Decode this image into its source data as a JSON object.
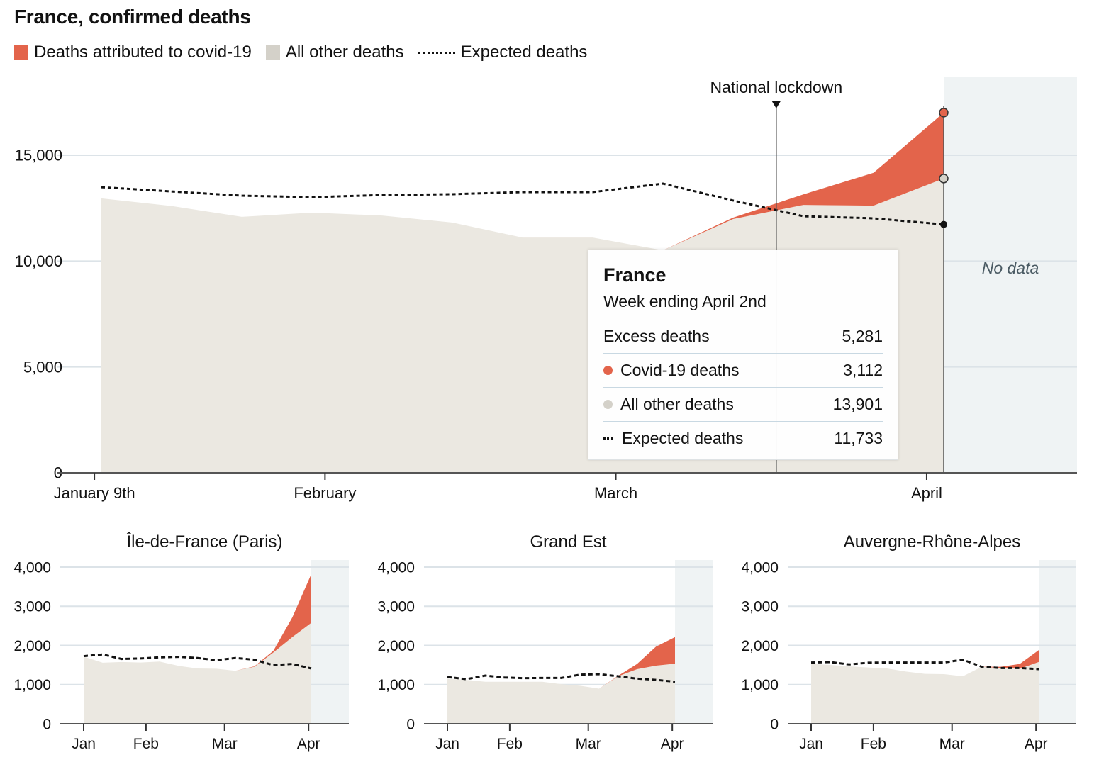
{
  "title": "France, confirmed deaths",
  "legend": [
    {
      "label": "Deaths attributed to covid-19",
      "color": "#E3644B"
    },
    {
      "label": "All other deaths",
      "color": "#D4D1C9"
    },
    {
      "label": "Expected deaths",
      "style": "dotted"
    }
  ],
  "colors": {
    "covid": "#E3644B",
    "other": "#EBE8E1",
    "grid": "#DCE3E8",
    "nodata": "#EFF3F4",
    "axis": "#555555"
  },
  "chart_data": [
    {
      "type": "area",
      "name": "France",
      "weeks": [
        "2020-01-09",
        "2020-01-16",
        "2020-01-23",
        "2020-01-30",
        "2020-02-06",
        "2020-02-13",
        "2020-02-20",
        "2020-02-27",
        "2020-03-05",
        "2020-03-12",
        "2020-03-19",
        "2020-03-26",
        "2020-04-02"
      ],
      "other": [
        12960,
        12600,
        12090,
        12290,
        12150,
        11820,
        11110,
        11110,
        10510,
        11985,
        12650,
        12620,
        13901
      ],
      "covid": [
        0,
        0,
        0,
        0,
        0,
        0,
        0,
        0,
        0,
        70,
        500,
        1550,
        3112
      ],
      "expected": [
        13490,
        13290,
        13090,
        13020,
        13120,
        13160,
        13260,
        13260,
        13660,
        12860,
        12120,
        12020,
        11733
      ],
      "ylim": [
        0,
        18000
      ],
      "yticks": [
        {
          "v": 0,
          "label": "0"
        },
        {
          "v": 5000,
          "label": "5,000"
        },
        {
          "v": 10000,
          "label": "10,000"
        },
        {
          "v": 15000,
          "label": "15,000"
        }
      ],
      "xticks": [
        {
          "date": "2020-01-09",
          "label": "January 9th"
        },
        {
          "date": "2020-02-01",
          "label": "February"
        },
        {
          "date": "2020-03-01",
          "label": "March"
        },
        {
          "date": "2020-04-01",
          "label": "April"
        }
      ],
      "annotation": {
        "label": "National lockdown",
        "date": "2020-03-17"
      },
      "nodata_label": "No data",
      "grid": true
    },
    {
      "type": "area",
      "title": "Île-de-France (Paris)",
      "other": [
        1715,
        1558,
        1576,
        1564,
        1588,
        1479,
        1412,
        1406,
        1352,
        1455,
        1818,
        2212,
        2576
      ],
      "covid": [
        0,
        0,
        0,
        0,
        0,
        0,
        0,
        0,
        0,
        12,
        43,
        503,
        1242
      ],
      "expected": [
        1727,
        1770,
        1655,
        1667,
        1697,
        1709,
        1679,
        1624,
        1679,
        1636,
        1497,
        1527,
        1412
      ],
      "ylim": [
        0,
        4000
      ],
      "yticks": [
        {
          "v": 0,
          "label": "0"
        },
        {
          "v": 1000,
          "label": "1,000"
        },
        {
          "v": 2000,
          "label": "2,000"
        },
        {
          "v": 3000,
          "label": "3,000"
        },
        {
          "v": 4000,
          "label": "4,000"
        }
      ],
      "xticks": [
        {
          "date": "2020-01-09",
          "label": "Jan"
        },
        {
          "date": "2020-02-01",
          "label": "Feb"
        },
        {
          "date": "2020-03-01",
          "label": "Mar"
        },
        {
          "date": "2020-04-01",
          "label": "Apr"
        }
      ]
    },
    {
      "type": "area",
      "title": "Grand Est",
      "other": [
        1152,
        1121,
        1073,
        1073,
        1073,
        1073,
        1012,
        970,
        897,
        1212,
        1394,
        1485,
        1533
      ],
      "covid": [
        0,
        0,
        0,
        0,
        0,
        0,
        0,
        0,
        0,
        12,
        133,
        485,
        679
      ],
      "expected": [
        1194,
        1139,
        1230,
        1182,
        1164,
        1170,
        1170,
        1255,
        1267,
        1212,
        1152,
        1121,
        1073
      ],
      "ylim": [
        0,
        4000
      ],
      "yticks": [
        {
          "v": 0,
          "label": "0"
        },
        {
          "v": 1000,
          "label": "1,000"
        },
        {
          "v": 2000,
          "label": "2,000"
        },
        {
          "v": 3000,
          "label": "3,000"
        },
        {
          "v": 4000,
          "label": "4,000"
        }
      ],
      "xticks": [
        {
          "date": "2020-01-09",
          "label": "Jan"
        },
        {
          "date": "2020-02-01",
          "label": "Feb"
        },
        {
          "date": "2020-03-01",
          "label": "Mar"
        },
        {
          "date": "2020-04-01",
          "label": "Apr"
        }
      ]
    },
    {
      "type": "area",
      "title": "Auvergne-Rhône-Alpes",
      "other": [
        1527,
        1503,
        1467,
        1436,
        1412,
        1333,
        1273,
        1267,
        1212,
        1455,
        1424,
        1406,
        1576
      ],
      "covid": [
        0,
        0,
        0,
        0,
        0,
        0,
        0,
        0,
        0,
        0,
        31,
        121,
        303
      ],
      "expected": [
        1564,
        1576,
        1515,
        1558,
        1564,
        1564,
        1564,
        1564,
        1636,
        1455,
        1424,
        1424,
        1394
      ],
      "ylim": [
        0,
        4000
      ],
      "yticks": [
        {
          "v": 0,
          "label": "0"
        },
        {
          "v": 1000,
          "label": "1,000"
        },
        {
          "v": 2000,
          "label": "2,000"
        },
        {
          "v": 3000,
          "label": "3,000"
        },
        {
          "v": 4000,
          "label": "4,000"
        }
      ],
      "xticks": [
        {
          "date": "2020-01-09",
          "label": "Jan"
        },
        {
          "date": "2020-02-01",
          "label": "Feb"
        },
        {
          "date": "2020-03-01",
          "label": "Mar"
        },
        {
          "date": "2020-04-01",
          "label": "Apr"
        }
      ]
    }
  ],
  "tooltip": {
    "title": "France",
    "subtitle": "Week ending April 2nd",
    "rows": [
      {
        "label": "Excess deaths",
        "value": "5,281"
      },
      {
        "label": "Covid-19 deaths",
        "value": "3,112"
      },
      {
        "label": "All other deaths",
        "value": "13,901"
      },
      {
        "label": "Expected deaths",
        "value": "11,733"
      }
    ]
  }
}
